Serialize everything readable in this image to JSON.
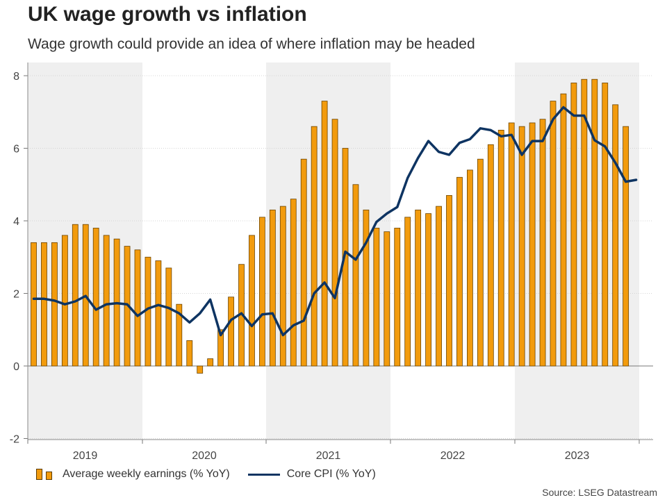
{
  "chart_data": {
    "type": "bar",
    "title": "UK wage growth vs inflation",
    "subtitle": "Wage growth could provide an idea of where inflation may be headed",
    "ylim": [
      -2,
      8.4
    ],
    "yticks": [
      -2,
      0,
      2,
      4,
      6,
      8
    ],
    "x_labels": [
      "2019",
      "2020",
      "2021",
      "2022",
      "2023"
    ],
    "grid": true,
    "legend_position": "bottom-left",
    "series": [
      {
        "name": "Average weekly earnings (% YoY)",
        "type": "bar",
        "color": "#f29b0d",
        "values": [
          3.4,
          3.4,
          3.4,
          3.6,
          3.9,
          3.9,
          3.8,
          3.6,
          3.5,
          3.3,
          3.2,
          3.0,
          2.9,
          2.7,
          1.7,
          0.7,
          -0.2,
          0.2,
          1.0,
          1.9,
          2.8,
          3.6,
          4.1,
          4.3,
          4.4,
          4.6,
          5.7,
          6.6,
          7.3,
          6.8,
          6.0,
          5.0,
          4.3,
          3.8,
          3.7,
          3.8,
          4.1,
          4.3,
          4.2,
          4.4,
          4.7,
          5.2,
          5.4,
          5.7,
          6.1,
          6.5,
          6.7,
          6.6,
          6.7,
          6.8,
          7.3,
          7.5,
          7.8,
          7.9,
          7.9,
          7.8,
          7.2,
          6.6
        ]
      },
      {
        "name": "Core CPI (% YoY)",
        "type": "line",
        "color": "#0e3462",
        "values": [
          1.85,
          1.85,
          1.8,
          1.7,
          1.78,
          1.93,
          1.55,
          1.7,
          1.73,
          1.7,
          1.38,
          1.58,
          1.68,
          1.6,
          1.45,
          1.2,
          1.45,
          1.83,
          0.85,
          1.27,
          1.45,
          1.1,
          1.42,
          1.45,
          0.85,
          1.12,
          1.25,
          2.0,
          2.3,
          1.87,
          3.15,
          2.93,
          3.4,
          3.97,
          4.2,
          4.38,
          5.18,
          5.73,
          6.2,
          5.9,
          5.82,
          6.15,
          6.25,
          6.55,
          6.5,
          6.33,
          6.37,
          5.82,
          6.2,
          6.2,
          6.8,
          7.13,
          6.9,
          6.9,
          6.22,
          6.05,
          5.6,
          5.08,
          5.13
        ]
      }
    ]
  },
  "legend": {
    "earnings_label": "Average weekly earnings (% YoY)",
    "cpi_label": "Core CPI (% YoY)"
  },
  "source": "Source: LSEG Datastream"
}
